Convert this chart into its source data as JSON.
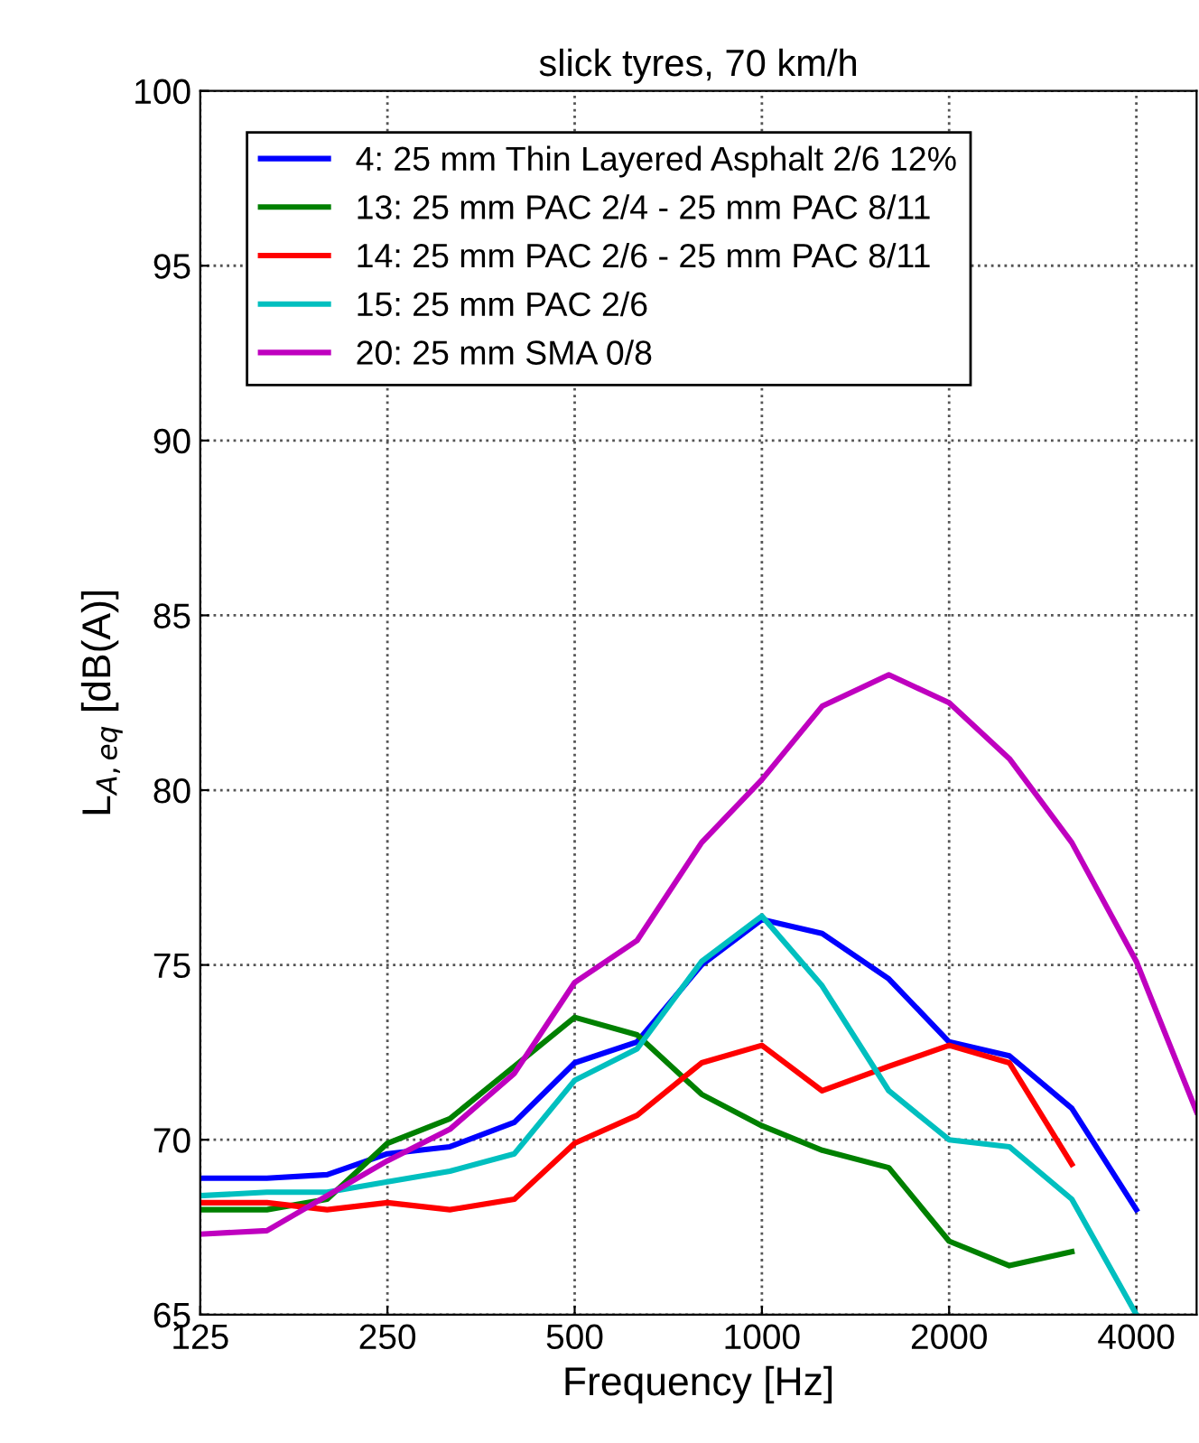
{
  "chart_data": {
    "type": "line",
    "title": "slick tyres, 70 km/h",
    "xlabel": "Frequency [Hz]",
    "ylabel": "L$_{A,eq}$ [dB(A)]",
    "x": [
      125,
      160,
      200,
      250,
      315,
      400,
      500,
      630,
      800,
      1000,
      1250,
      1600,
      2000,
      2500,
      3150,
      4000,
      5000
    ],
    "series": [
      {
        "name": "4: 25 mm Thin Layered Asphalt 2/6 12%",
        "color": "#0000ff",
        "values": [
          68.9,
          68.9,
          69.0,
          69.6,
          69.8,
          70.5,
          72.2,
          72.8,
          75.0,
          76.3,
          75.9,
          74.6,
          72.8,
          72.4,
          70.9,
          68.0,
          null
        ]
      },
      {
        "name": "13: 25 mm PAC 2/4 - 25 mm PAC 8/11",
        "color": "#008000",
        "values": [
          68.0,
          68.0,
          68.3,
          69.9,
          70.6,
          72.1,
          73.5,
          73.0,
          71.3,
          70.4,
          69.7,
          69.2,
          67.1,
          66.4,
          66.8,
          null,
          null
        ]
      },
      {
        "name": "14: 25 mm PAC 2/6 - 25 mm PAC 8/11",
        "color": "#ff0000",
        "values": [
          68.2,
          68.2,
          68.0,
          68.2,
          68.0,
          68.3,
          69.9,
          70.7,
          72.2,
          72.7,
          71.4,
          72.1,
          72.7,
          72.2,
          69.3,
          null,
          null
        ]
      },
      {
        "name": "15: 25 mm PAC 2/6",
        "color": "#00bfbf",
        "values": [
          68.4,
          68.5,
          68.5,
          68.8,
          69.1,
          69.6,
          71.7,
          72.6,
          75.1,
          76.4,
          74.4,
          71.4,
          70.0,
          69.8,
          68.3,
          65.0,
          null
        ]
      },
      {
        "name": "20: 25 mm SMA 0/8",
        "color": "#bf00bf",
        "values": [
          67.3,
          67.4,
          68.4,
          69.4,
          70.3,
          71.9,
          74.5,
          75.7,
          78.5,
          80.3,
          82.4,
          83.3,
          82.5,
          80.9,
          78.5,
          75.1,
          70.8
        ]
      }
    ],
    "log": "x",
    "xlim": [
      125,
      5000
    ],
    "xticks": [
      125,
      250,
      500,
      1000,
      2000,
      4000
    ],
    "ylim": [
      65,
      100
    ],
    "yticks": [
      65,
      70,
      75,
      80,
      85,
      90,
      95,
      100
    ],
    "grid": true,
    "legend": "top left",
    "line_style": "solid",
    "marker": "none"
  }
}
